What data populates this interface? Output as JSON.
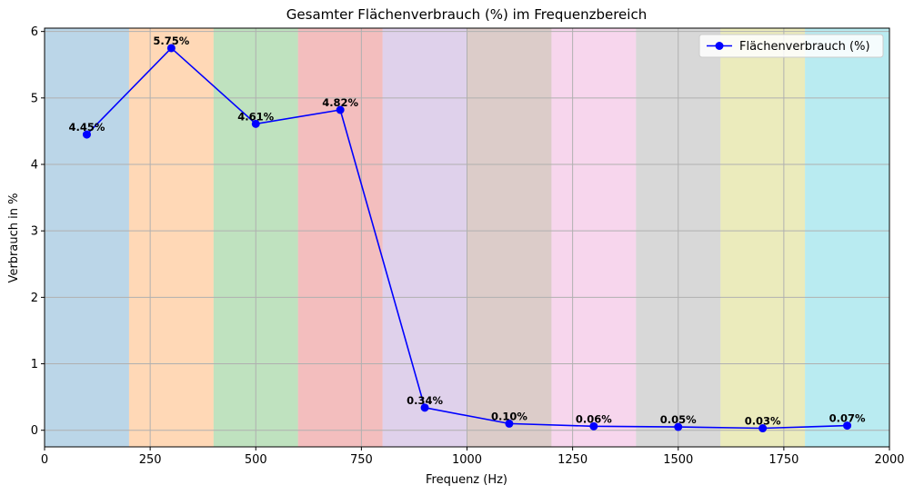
{
  "chart_data": {
    "type": "line",
    "title": "Gesamter Flächenverbrauch (%) im Frequenzbereich",
    "xlabel": "Frequenz (Hz)",
    "ylabel": "Verbrauch in %",
    "xlim": [
      0,
      2000
    ],
    "ylim": [
      -0.25,
      6.05
    ],
    "x_ticks": [
      "0",
      "250",
      "500",
      "750",
      "1000",
      "1250",
      "1500",
      "1750",
      "2000"
    ],
    "y_ticks": [
      "0",
      "1",
      "2",
      "3",
      "4",
      "5",
      "6"
    ],
    "grid": true,
    "legend_position": "top-right",
    "line_color": "#0000ff",
    "bands": [
      {
        "from": 0,
        "to": 200,
        "color": "#1f77b4"
      },
      {
        "from": 200,
        "to": 400,
        "color": "#ff7f0e"
      },
      {
        "from": 400,
        "to": 600,
        "color": "#2ca02c"
      },
      {
        "from": 600,
        "to": 800,
        "color": "#d62728"
      },
      {
        "from": 800,
        "to": 1000,
        "color": "#9467bd"
      },
      {
        "from": 1000,
        "to": 1200,
        "color": "#8c564b"
      },
      {
        "from": 1200,
        "to": 1400,
        "color": "#e377c2"
      },
      {
        "from": 1400,
        "to": 1600,
        "color": "#7f7f7f"
      },
      {
        "from": 1600,
        "to": 1800,
        "color": "#bcbd22"
      },
      {
        "from": 1800,
        "to": 2000,
        "color": "#17becf"
      }
    ],
    "series": [
      {
        "name": "Flächenverbrauch (%)",
        "x": [
          100,
          300,
          500,
          700,
          900,
          1100,
          1300,
          1500,
          1700,
          1900
        ],
        "values": [
          4.45,
          5.75,
          4.61,
          4.82,
          0.34,
          0.1,
          0.06,
          0.05,
          0.03,
          0.07
        ],
        "labels": [
          "4.45%",
          "5.75%",
          "4.61%",
          "4.82%",
          "0.34%",
          "0.10%",
          "0.06%",
          "0.05%",
          "0.03%",
          "0.07%"
        ]
      }
    ]
  }
}
